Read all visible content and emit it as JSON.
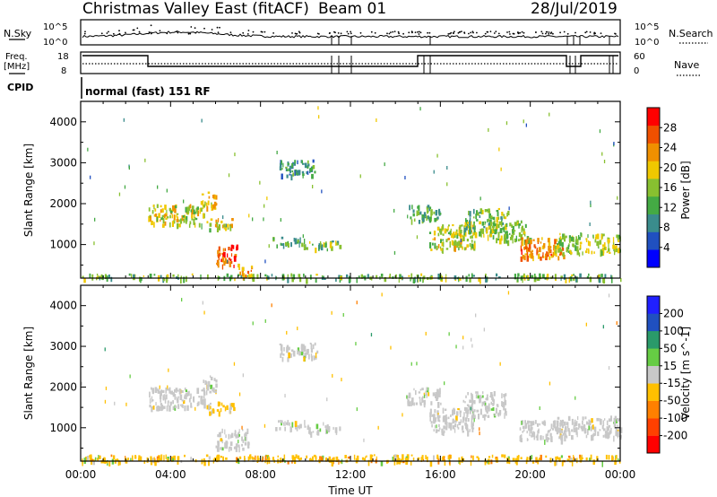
{
  "header": {
    "station": "Christmas Valley East (fitACF)",
    "beam": "Beam 01",
    "date": "28/Jul/2019"
  },
  "labels": {
    "nsky": "N.Sky",
    "nsearch": "N.Search",
    "freq_line1": "Freq.",
    "freq_line2": "[MHz]",
    "nave": "Nave",
    "cpid": "CPID",
    "cpid_value": "normal (fast) 151 RF",
    "nsky_tick_top": "10^5",
    "nsky_tick_bottom": "10^0",
    "freq_tick_top": "18",
    "freq_tick_bottom": "8",
    "nave_tick_top": "60",
    "nave_tick_bottom": "0"
  },
  "chart_data": [
    {
      "type": "heatmap",
      "panel": "power",
      "ylabel": "Slant Range [km]",
      "ylim": [
        180,
        4500
      ],
      "yticks": [
        1000,
        2000,
        3000,
        4000
      ],
      "colorbar_label": "Power [dB]",
      "colorbar_ticks": [
        4,
        8,
        12,
        16,
        20,
        24,
        28
      ],
      "colorbar_range": [
        0,
        32
      ],
      "colorscale": [
        "#0000ff",
        "#2050c0",
        "#3a8c8c",
        "#44aa44",
        "#88c030",
        "#f0c800",
        "#f09000",
        "#f05000",
        "#ff0000"
      ],
      "regions": [
        {
          "t": [
            0.0,
            24.0
          ],
          "r": [
            180,
            300
          ],
          "v": 14
        },
        {
          "t": [
            3.0,
            5.5
          ],
          "r": [
            1500,
            2000
          ],
          "v": 18
        },
        {
          "t": [
            5.3,
            6.0
          ],
          "r": [
            1900,
            2300
          ],
          "v": 20
        },
        {
          "t": [
            5.6,
            6.8
          ],
          "r": [
            1400,
            1650
          ],
          "v": 18
        },
        {
          "t": [
            6.0,
            7.0
          ],
          "r": [
            500,
            1000
          ],
          "v": 26
        },
        {
          "t": [
            7.0,
            7.6
          ],
          "r": [
            200,
            500
          ],
          "v": 22
        },
        {
          "t": [
            8.5,
            10.0
          ],
          "r": [
            1000,
            1200
          ],
          "v": 12
        },
        {
          "t": [
            8.8,
            10.5
          ],
          "r": [
            2700,
            3100
          ],
          "v": 10
        },
        {
          "t": [
            10.0,
            11.5
          ],
          "r": [
            900,
            1100
          ],
          "v": 14
        },
        {
          "t": [
            14.5,
            16.0
          ],
          "r": [
            1600,
            2000
          ],
          "v": 12
        },
        {
          "t": [
            15.5,
            17.5
          ],
          "r": [
            900,
            1500
          ],
          "v": 18
        },
        {
          "t": [
            17.0,
            19.0
          ],
          "r": [
            1300,
            1900
          ],
          "v": 14
        },
        {
          "t": [
            18.0,
            20.0
          ],
          "r": [
            1100,
            1600
          ],
          "v": 16
        },
        {
          "t": [
            19.5,
            21.5
          ],
          "r": [
            700,
            1200
          ],
          "v": 24
        },
        {
          "t": [
            21.0,
            24.0
          ],
          "r": [
            800,
            1300
          ],
          "v": 16
        }
      ]
    },
    {
      "type": "heatmap",
      "panel": "velocity",
      "xlabel": "Time UT",
      "ylabel": "Slant Range [km]",
      "ylim": [
        180,
        4500
      ],
      "yticks": [
        1000,
        2000,
        3000,
        4000
      ],
      "xlim": [
        0,
        24
      ],
      "xticks": [
        "00:00",
        "04:00",
        "08:00",
        "12:00",
        "16:00",
        "20:00",
        "00:00"
      ],
      "colorbar_label": "Velocity [m s^-1]",
      "colorbar_ticks": [
        -200,
        -100,
        -50,
        -15,
        15,
        50,
        100,
        200
      ],
      "colorbar_range": [
        -250,
        250
      ],
      "colorscale": [
        "#ff0000",
        "#ff4000",
        "#ff8000",
        "#ffc000",
        "#c8c8c8",
        "#66cc44",
        "#2a9a6a",
        "#2050c0",
        "#2020ff"
      ],
      "regions": [
        {
          "t": [
            0.0,
            24.0
          ],
          "r": [
            180,
            350
          ],
          "v": -60
        },
        {
          "t": [
            3.0,
            5.5
          ],
          "r": [
            1500,
            2000
          ],
          "v": 0
        },
        {
          "t": [
            5.3,
            6.0
          ],
          "r": [
            1900,
            2300
          ],
          "v": 0
        },
        {
          "t": [
            5.6,
            6.8
          ],
          "r": [
            1400,
            1650
          ],
          "v": -30
        },
        {
          "t": [
            6.0,
            7.5
          ],
          "r": [
            500,
            1000
          ],
          "v": 0
        },
        {
          "t": [
            8.5,
            10.0
          ],
          "r": [
            1000,
            1200
          ],
          "v": 0
        },
        {
          "t": [
            8.8,
            10.5
          ],
          "r": [
            2700,
            3100
          ],
          "v": 0
        },
        {
          "t": [
            10.0,
            11.5
          ],
          "r": [
            900,
            1100
          ],
          "v": 0
        },
        {
          "t": [
            14.5,
            16.0
          ],
          "r": [
            1600,
            2000
          ],
          "v": 0
        },
        {
          "t": [
            15.5,
            17.5
          ],
          "r": [
            900,
            1500
          ],
          "v": 0
        },
        {
          "t": [
            17.0,
            19.0
          ],
          "r": [
            1300,
            1900
          ],
          "v": 0
        },
        {
          "t": [
            19.5,
            21.5
          ],
          "r": [
            700,
            1200
          ],
          "v": 0
        },
        {
          "t": [
            21.0,
            24.0
          ],
          "r": [
            800,
            1300
          ],
          "v": 0
        }
      ]
    }
  ]
}
